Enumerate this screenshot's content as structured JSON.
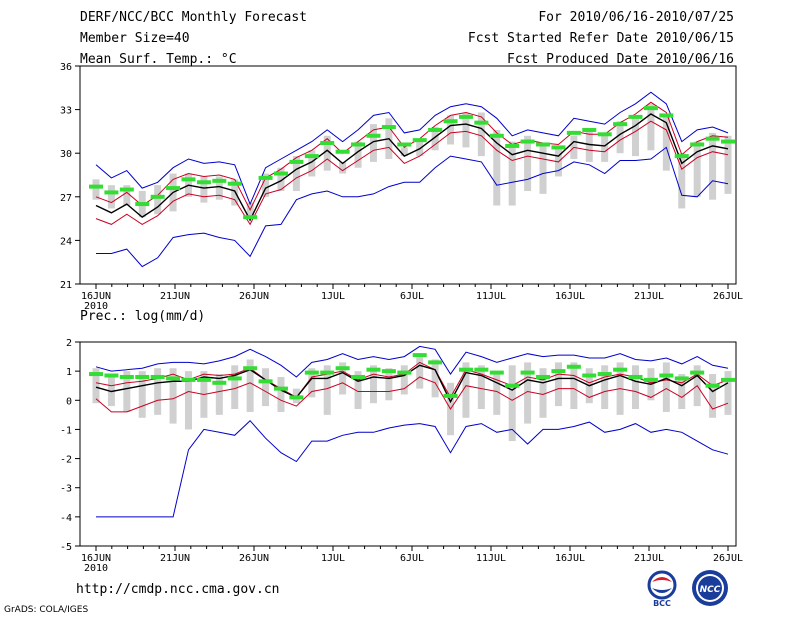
{
  "header": {
    "title": "DERF/NCC/BCC Monthly Forecast",
    "member_size": "Member Size=40",
    "variable": "Mean Surf. Temp.: °C",
    "forecast_period": "For 2010/06/16-2010/07/25",
    "started_refer": "Fcst Started Refer Date 2010/06/15",
    "produced": "Fcst Produced Date 2010/06/16"
  },
  "footer": {
    "url": "http://cmdp.ncc.cma.gov.cn",
    "credit": "GrADS: COLA/IGES",
    "logo_bcc": "BCC",
    "logo_ncc": "NCC"
  },
  "colors": {
    "max_min": "#0000cc",
    "spread": "#cc0022",
    "mean": "#000000",
    "box": "#d0d0d0",
    "median": "#33dd33"
  },
  "chart_data": [
    {
      "type": "line",
      "title": "Mean Surf. Temp.: °C",
      "ylim": [
        21,
        36
      ],
      "yticks": [
        21,
        24,
        27,
        30,
        33,
        36
      ],
      "x_days": 40,
      "xtick_labels": [
        "16JUN",
        "21JUN",
        "26JUN",
        "1JUL",
        "6JUL",
        "11JUL",
        "16JUL",
        "21JUL",
        "26JUL"
      ],
      "xtick_days": [
        0,
        5,
        10,
        15,
        20,
        25,
        30,
        35,
        40
      ],
      "year_label": "2010",
      "series": [
        {
          "name": "max",
          "style": "max_min",
          "values": [
            29.2,
            28.3,
            28.8,
            27.6,
            28.0,
            29.0,
            29.6,
            29.3,
            29.4,
            29.2,
            26.5,
            29.0,
            29.6,
            30.2,
            30.8,
            31.6,
            30.8,
            31.6,
            32.6,
            32.8,
            31.4,
            31.6,
            32.6,
            33.2,
            33.4,
            33.2,
            32.4,
            31.2,
            31.6,
            31.4,
            31.2,
            32.4,
            32.2,
            32.0,
            32.8,
            33.4,
            34.2,
            33.4,
            30.8,
            31.6,
            31.8,
            31.4
          ]
        },
        {
          "name": "upper",
          "style": "spread",
          "values": [
            27.0,
            26.6,
            27.3,
            26.4,
            27.1,
            28.2,
            28.6,
            28.4,
            28.5,
            28.2,
            26.1,
            28.3,
            28.9,
            29.7,
            30.2,
            31.0,
            30.0,
            30.8,
            31.6,
            31.8,
            30.4,
            31.0,
            31.9,
            32.6,
            32.8,
            32.5,
            31.4,
            30.6,
            30.9,
            30.7,
            30.6,
            31.5,
            31.3,
            31.3,
            32.1,
            32.7,
            33.5,
            32.8,
            29.9,
            30.8,
            31.2,
            31.1
          ]
        },
        {
          "name": "mean",
          "style": "mean",
          "values": [
            26.4,
            25.9,
            26.5,
            25.6,
            26.3,
            27.3,
            27.8,
            27.6,
            27.7,
            27.4,
            25.4,
            27.6,
            28.1,
            28.9,
            29.4,
            30.2,
            29.3,
            30.1,
            30.8,
            31.0,
            29.8,
            30.3,
            31.1,
            31.9,
            32.0,
            31.7,
            30.7,
            29.9,
            30.2,
            30.0,
            29.8,
            30.8,
            30.6,
            30.5,
            31.3,
            31.9,
            32.7,
            32.1,
            29.3,
            30.1,
            30.5,
            30.3
          ]
        },
        {
          "name": "lower",
          "style": "spread",
          "values": [
            25.5,
            25.1,
            25.8,
            25.1,
            25.7,
            26.7,
            27.2,
            27.0,
            27.1,
            26.8,
            25.1,
            27.2,
            27.5,
            28.3,
            28.8,
            29.6,
            28.8,
            29.5,
            30.2,
            30.4,
            29.3,
            29.8,
            30.6,
            31.4,
            31.5,
            31.2,
            30.2,
            29.5,
            29.8,
            29.6,
            29.4,
            30.4,
            30.2,
            30.1,
            30.9,
            31.5,
            32.2,
            31.6,
            28.9,
            29.7,
            30.1,
            29.9
          ]
        },
        {
          "name": "min",
          "style": "max_min",
          "values": [
            23.1,
            23.1,
            23.4,
            22.2,
            22.8,
            24.2,
            24.4,
            24.5,
            24.2,
            24.0,
            22.9,
            25.0,
            25.1,
            26.8,
            27.2,
            27.4,
            27.0,
            27.0,
            27.2,
            27.7,
            28.0,
            28.0,
            29.0,
            29.8,
            29.6,
            29.4,
            27.8,
            28.0,
            28.2,
            28.6,
            28.8,
            29.4,
            29.2,
            28.6,
            29.5,
            29.5,
            29.6,
            30.4,
            27.1,
            27.0,
            28.1,
            27.9
          ]
        }
      ],
      "box_low": [
        26.8,
        26.2,
        26.4,
        25.6,
        25.8,
        26.0,
        27.0,
        26.6,
        26.8,
        26.4,
        25.6,
        27.0,
        27.4,
        27.4,
        28.4,
        28.8,
        28.6,
        29.0,
        29.4,
        29.6,
        29.8,
        29.8,
        30.2,
        30.6,
        30.4,
        29.8,
        26.4,
        26.4,
        27.4,
        27.2,
        28.4,
        29.6,
        29.4,
        29.4,
        30.0,
        29.8,
        30.2,
        28.8,
        26.2,
        27.0,
        26.8,
        27.2
      ],
      "box_high": [
        28.2,
        27.8,
        27.8,
        27.4,
        27.8,
        28.6,
        28.6,
        28.4,
        28.4,
        28.2,
        26.6,
        28.6,
        29.0,
        29.8,
        30.2,
        31.2,
        29.4,
        30.8,
        32.0,
        32.4,
        30.4,
        31.0,
        31.8,
        32.6,
        32.8,
        32.8,
        31.6,
        30.8,
        31.2,
        30.6,
        30.4,
        31.2,
        31.6,
        31.4,
        32.2,
        32.4,
        33.4,
        32.6,
        30.0,
        30.8,
        31.4,
        31.2
      ],
      "median": [
        27.7,
        27.3,
        27.5,
        26.5,
        27.0,
        27.6,
        28.2,
        28.0,
        28.1,
        27.9,
        25.6,
        28.3,
        28.6,
        29.4,
        29.8,
        30.7,
        30.1,
        30.6,
        31.2,
        31.8,
        30.6,
        30.9,
        31.6,
        32.2,
        32.5,
        32.1,
        31.2,
        30.5,
        30.8,
        30.6,
        30.4,
        31.4,
        31.6,
        31.3,
        32.0,
        32.5,
        33.1,
        32.6,
        29.8,
        30.6,
        31.0,
        30.8
      ]
    },
    {
      "type": "line",
      "title": "Prec.: log(mm/d)",
      "ylim": [
        -5,
        2
      ],
      "yticks": [
        -5,
        -4,
        -3,
        -2,
        -1,
        0,
        1,
        2
      ],
      "x_days": 40,
      "xtick_labels": [
        "16JUN",
        "21JUN",
        "26JUN",
        "1JUL",
        "6JUL",
        "11JUL",
        "16JUL",
        "21JUL",
        "26JUL"
      ],
      "xtick_days": [
        0,
        5,
        10,
        15,
        20,
        25,
        30,
        35,
        40
      ],
      "year_label": "2010",
      "series": [
        {
          "name": "max",
          "style": "max_min",
          "values": [
            1.15,
            1.0,
            1.05,
            1.1,
            1.25,
            1.3,
            1.3,
            1.25,
            1.35,
            1.5,
            1.75,
            1.5,
            1.2,
            0.8,
            1.3,
            1.4,
            1.6,
            1.4,
            1.5,
            1.4,
            1.5,
            1.85,
            1.75,
            0.9,
            1.65,
            1.5,
            1.3,
            1.45,
            1.6,
            1.5,
            1.55,
            1.55,
            1.45,
            1.45,
            1.6,
            1.4,
            1.35,
            1.45,
            1.25,
            1.5,
            1.2,
            1.1
          ]
        },
        {
          "name": "upper",
          "style": "spread",
          "values": [
            0.6,
            0.5,
            0.6,
            0.65,
            0.75,
            0.9,
            0.7,
            0.9,
            0.85,
            0.9,
            1.1,
            0.7,
            0.4,
            0.1,
            0.8,
            0.9,
            1.0,
            0.7,
            0.9,
            0.8,
            0.9,
            1.3,
            1.05,
            0.1,
            1.05,
            0.9,
            0.7,
            0.5,
            0.8,
            0.7,
            0.9,
            0.85,
            0.6,
            0.8,
            0.9,
            0.8,
            0.6,
            0.7,
            0.6,
            0.9,
            0.5,
            0.7
          ]
        },
        {
          "name": "mean",
          "style": "mean",
          "values": [
            0.45,
            0.3,
            0.4,
            0.5,
            0.6,
            0.65,
            0.65,
            0.8,
            0.75,
            0.85,
            1.05,
            0.7,
            0.35,
            0.1,
            0.75,
            0.75,
            0.95,
            0.65,
            0.8,
            0.75,
            0.85,
            1.2,
            1.05,
            -0.05,
            0.95,
            0.85,
            0.6,
            0.35,
            0.7,
            0.6,
            0.75,
            0.75,
            0.5,
            0.7,
            0.85,
            0.65,
            0.55,
            0.75,
            0.5,
            0.85,
            0.3,
            0.6
          ]
        },
        {
          "name": "lower",
          "style": "spread",
          "values": [
            0.05,
            -0.4,
            -0.4,
            -0.2,
            0.0,
            0.05,
            0.3,
            0.2,
            0.3,
            0.4,
            0.6,
            0.3,
            0.0,
            -0.2,
            0.3,
            0.4,
            0.6,
            0.3,
            0.3,
            0.3,
            0.4,
            0.8,
            0.6,
            -0.3,
            0.5,
            0.4,
            0.3,
            0.0,
            0.3,
            0.2,
            0.4,
            0.4,
            0.1,
            0.3,
            0.4,
            0.3,
            0.1,
            0.4,
            0.1,
            0.5,
            -0.3,
            -0.1
          ]
        },
        {
          "name": "min",
          "style": "max_min",
          "values": [
            -4,
            -4,
            -4,
            -4,
            -4,
            -4,
            -1.7,
            -1.0,
            -1.1,
            -1.2,
            -0.7,
            -1.3,
            -1.8,
            -2.1,
            -1.4,
            -1.4,
            -1.2,
            -1.1,
            -1.1,
            -0.95,
            -0.85,
            -0.8,
            -0.9,
            -1.8,
            -0.9,
            -0.8,
            -1.1,
            -1.0,
            -1.5,
            -1.0,
            -1.0,
            -0.9,
            -0.75,
            -1.1,
            -1.0,
            -0.8,
            -1.1,
            -1.0,
            -1.1,
            -1.4,
            -1.7,
            -1.85
          ]
        }
      ],
      "box_low": [
        -0.1,
        -0.2,
        -0.4,
        -0.6,
        -0.5,
        -0.8,
        -1.0,
        -0.6,
        -0.5,
        -0.3,
        -0.4,
        -0.2,
        -0.4,
        -0.1,
        0.1,
        -0.5,
        0.2,
        -0.3,
        -0.1,
        0.0,
        0.2,
        0.4,
        0.1,
        -1.2,
        -0.6,
        -0.3,
        -0.5,
        -1.4,
        -0.8,
        -0.6,
        -0.2,
        -0.3,
        -0.1,
        -0.3,
        -0.5,
        -0.3,
        0.0,
        -0.4,
        -0.3,
        -0.2,
        -0.6,
        -0.5
      ],
      "box_high": [
        1.1,
        0.9,
        1.0,
        1.0,
        1.1,
        1.1,
        1.0,
        1.0,
        0.9,
        1.2,
        1.4,
        1.1,
        0.8,
        0.4,
        1.1,
        1.2,
        1.3,
        1.0,
        1.2,
        1.1,
        1.2,
        1.6,
        1.4,
        0.6,
        1.3,
        1.2,
        1.0,
        1.2,
        1.3,
        1.1,
        1.3,
        1.3,
        1.1,
        1.2,
        1.3,
        1.2,
        1.1,
        1.3,
        0.9,
        1.2,
        0.9,
        1.0
      ],
      "median": [
        0.9,
        0.85,
        0.8,
        0.8,
        0.8,
        0.75,
        0.7,
        0.7,
        0.6,
        0.75,
        1.1,
        0.65,
        0.4,
        0.1,
        0.95,
        0.95,
        1.1,
        0.8,
        1.05,
        1.0,
        0.95,
        1.55,
        1.3,
        0.15,
        1.05,
        1.05,
        0.95,
        0.5,
        0.95,
        0.8,
        1.0,
        1.15,
        0.85,
        0.9,
        1.05,
        0.8,
        0.7,
        0.85,
        0.75,
        0.95,
        0.5,
        0.7
      ]
    }
  ]
}
